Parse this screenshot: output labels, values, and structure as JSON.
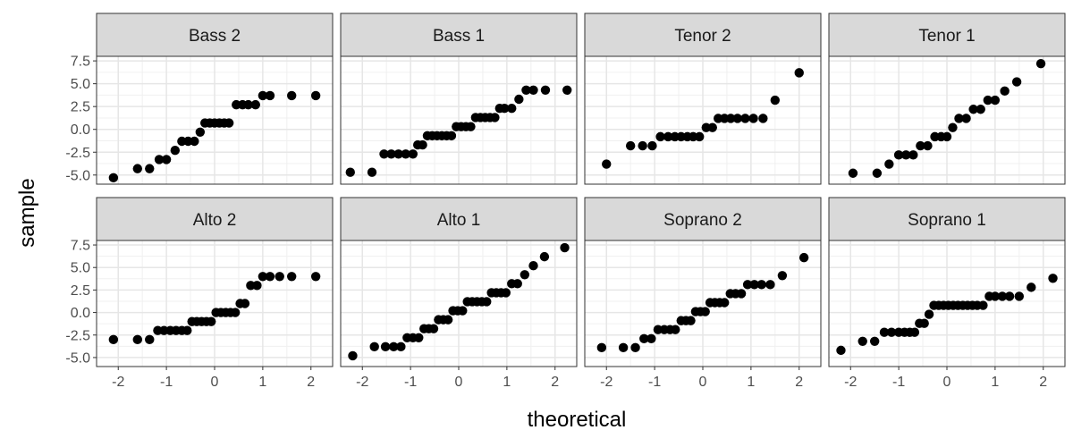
{
  "chart_data": {
    "type": "scatter",
    "xlabel": "theoretical",
    "ylabel": "sample",
    "xlim": [
      -2.45,
      2.45
    ],
    "ylim": [
      -6.0,
      8.0
    ],
    "x_ticks": [
      -2,
      -1,
      0,
      1,
      2
    ],
    "x_tick_labels": [
      "-2",
      "-1",
      "0",
      "1",
      "2"
    ],
    "y_ticks": [
      7.5,
      5.0,
      2.5,
      0.0,
      -2.5,
      -5.0
    ],
    "y_tick_labels": [
      "7.5",
      "5.0",
      "2.5",
      "0.0",
      "-2.5",
      "-5.0"
    ],
    "grid": true,
    "panels": [
      {
        "title": "Bass 2",
        "x": [
          -2.1,
          -1.6,
          -1.35,
          -1.15,
          -1.0,
          -0.82,
          -0.68,
          -0.55,
          -0.42,
          -0.3,
          -0.2,
          -0.1,
          0.0,
          0.1,
          0.2,
          0.3,
          0.45,
          0.58,
          0.7,
          0.85,
          1.0,
          1.15,
          1.6,
          2.1
        ],
        "y": [
          -5.3,
          -4.3,
          -4.3,
          -3.3,
          -3.3,
          -2.3,
          -1.3,
          -1.3,
          -1.3,
          -0.3,
          0.7,
          0.7,
          0.7,
          0.7,
          0.7,
          0.7,
          2.7,
          2.7,
          2.7,
          2.7,
          3.7,
          3.7,
          3.7,
          3.7
        ]
      },
      {
        "title": "Bass 1",
        "x": [
          -2.25,
          -1.8,
          -1.55,
          -1.4,
          -1.25,
          -1.1,
          -0.95,
          -0.85,
          -0.75,
          -0.65,
          -0.55,
          -0.45,
          -0.35,
          -0.25,
          -0.15,
          -0.05,
          0.05,
          0.15,
          0.25,
          0.35,
          0.45,
          0.55,
          0.65,
          0.75,
          0.85,
          0.95,
          1.1,
          1.25,
          1.4,
          1.55,
          1.8,
          2.25
        ],
        "y": [
          -4.7,
          -4.7,
          -2.7,
          -2.7,
          -2.7,
          -2.7,
          -2.7,
          -1.7,
          -1.7,
          -0.7,
          -0.7,
          -0.7,
          -0.7,
          -0.7,
          -0.7,
          0.3,
          0.3,
          0.3,
          0.3,
          1.3,
          1.3,
          1.3,
          1.3,
          1.3,
          2.3,
          2.3,
          2.3,
          3.3,
          4.3,
          4.3,
          4.3,
          4.3
        ]
      },
      {
        "title": "Tenor 2",
        "x": [
          -2.0,
          -1.5,
          -1.25,
          -1.05,
          -0.88,
          -0.72,
          -0.58,
          -0.45,
          -0.32,
          -0.2,
          -0.07,
          0.07,
          0.2,
          0.32,
          0.45,
          0.58,
          0.72,
          0.88,
          1.05,
          1.25,
          1.5,
          2.0
        ],
        "y": [
          -3.8,
          -1.8,
          -1.8,
          -1.8,
          -0.8,
          -0.8,
          -0.8,
          -0.8,
          -0.8,
          -0.8,
          -0.8,
          0.2,
          0.2,
          1.2,
          1.2,
          1.2,
          1.2,
          1.2,
          1.2,
          1.2,
          3.2,
          6.2
        ]
      },
      {
        "title": "Tenor 1",
        "x": [
          -1.95,
          -1.45,
          -1.2,
          -1.0,
          -0.85,
          -0.7,
          -0.55,
          -0.4,
          -0.25,
          -0.12,
          0.0,
          0.12,
          0.25,
          0.4,
          0.55,
          0.7,
          0.85,
          1.0,
          1.2,
          1.45,
          1.95
        ],
        "y": [
          -4.8,
          -4.8,
          -3.8,
          -2.8,
          -2.8,
          -2.8,
          -1.8,
          -1.8,
          -0.8,
          -0.8,
          -0.8,
          0.2,
          1.2,
          1.2,
          2.2,
          2.2,
          3.2,
          3.2,
          4.2,
          5.2,
          7.2
        ]
      },
      {
        "title": "Alto 2",
        "x": [
          -2.1,
          -1.6,
          -1.35,
          -1.18,
          -1.05,
          -0.92,
          -0.8,
          -0.68,
          -0.57,
          -0.47,
          -0.37,
          -0.27,
          -0.17,
          -0.07,
          0.03,
          0.13,
          0.23,
          0.33,
          0.43,
          0.53,
          0.63,
          0.75,
          0.88,
          1.0,
          1.15,
          1.35,
          1.6,
          2.1
        ],
        "y": [
          -3.0,
          -3.0,
          -3.0,
          -2.0,
          -2.0,
          -2.0,
          -2.0,
          -2.0,
          -2.0,
          -1.0,
          -1.0,
          -1.0,
          -1.0,
          -1.0,
          0.0,
          0.0,
          0.0,
          0.0,
          0.0,
          1.0,
          1.0,
          3.0,
          3.0,
          4.0,
          4.0,
          4.0,
          4.0,
          4.0
        ]
      },
      {
        "title": "Alto 1",
        "x": [
          -2.2,
          -1.75,
          -1.52,
          -1.35,
          -1.2,
          -1.07,
          -0.95,
          -0.83,
          -0.72,
          -0.62,
          -0.52,
          -0.42,
          -0.32,
          -0.22,
          -0.12,
          -0.02,
          0.08,
          0.18,
          0.28,
          0.38,
          0.48,
          0.58,
          0.68,
          0.78,
          0.88,
          0.98,
          1.1,
          1.22,
          1.37,
          1.55,
          1.78,
          2.2
        ],
        "y": [
          -4.8,
          -3.8,
          -3.8,
          -3.8,
          -3.8,
          -2.8,
          -2.8,
          -2.8,
          -1.8,
          -1.8,
          -1.8,
          -0.8,
          -0.8,
          -0.8,
          0.2,
          0.2,
          0.2,
          1.2,
          1.2,
          1.2,
          1.2,
          1.2,
          2.2,
          2.2,
          2.2,
          2.2,
          3.2,
          3.2,
          4.2,
          5.2,
          6.2,
          7.2
        ]
      },
      {
        "title": "Soprano 2",
        "x": [
          -2.1,
          -1.65,
          -1.4,
          -1.22,
          -1.07,
          -0.93,
          -0.8,
          -0.68,
          -0.57,
          -0.45,
          -0.35,
          -0.25,
          -0.15,
          -0.05,
          0.05,
          0.15,
          0.25,
          0.35,
          0.45,
          0.57,
          0.68,
          0.8,
          0.93,
          1.07,
          1.22,
          1.4,
          1.65,
          2.1
        ],
        "y": [
          -3.9,
          -3.9,
          -3.9,
          -2.9,
          -2.9,
          -1.9,
          -1.9,
          -1.9,
          -1.9,
          -0.9,
          -0.9,
          -0.9,
          0.1,
          0.1,
          0.1,
          1.1,
          1.1,
          1.1,
          1.1,
          2.1,
          2.1,
          2.1,
          3.1,
          3.1,
          3.1,
          3.1,
          4.1,
          6.1
        ]
      },
      {
        "title": "Soprano 1",
        "x": [
          -2.2,
          -1.75,
          -1.5,
          -1.3,
          -1.15,
          -1.0,
          -0.88,
          -0.77,
          -0.67,
          -0.57,
          -0.47,
          -0.37,
          -0.27,
          -0.17,
          -0.07,
          0.03,
          0.13,
          0.23,
          0.33,
          0.43,
          0.53,
          0.63,
          0.75,
          0.88,
          1.0,
          1.15,
          1.3,
          1.5,
          1.75,
          2.2
        ],
        "y": [
          -4.2,
          -3.2,
          -3.2,
          -2.2,
          -2.2,
          -2.2,
          -2.2,
          -2.2,
          -2.2,
          -1.2,
          -1.2,
          -0.2,
          0.8,
          0.8,
          0.8,
          0.8,
          0.8,
          0.8,
          0.8,
          0.8,
          0.8,
          0.8,
          0.8,
          1.8,
          1.8,
          1.8,
          1.8,
          1.8,
          2.8,
          3.8
        ]
      }
    ]
  }
}
